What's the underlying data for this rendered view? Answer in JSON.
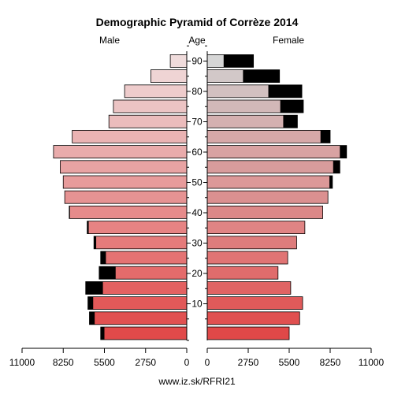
{
  "chart_data": {
    "type": "bar",
    "title": "Demographic Pyramid of Corrèze 2014",
    "left_label": "Male",
    "center_label": "Age",
    "right_label": "Female",
    "source": "www.iz.sk/RFRI21",
    "age_ticks": [
      10,
      20,
      30,
      40,
      50,
      60,
      70,
      80,
      90
    ],
    "x_ticks_left": [
      "11000",
      "8250",
      "5500",
      "2750",
      "0"
    ],
    "x_ticks_right": [
      "0",
      "2750",
      "5500",
      "8250",
      "11000"
    ],
    "xlim": [
      0,
      11000
    ],
    "groups": [
      "0-4",
      "5-9",
      "10-14",
      "15-19",
      "20-24",
      "25-29",
      "30-34",
      "35-39",
      "40-44",
      "45-49",
      "50-54",
      "55-59",
      "60-64",
      "65-69",
      "70-74",
      "75-79",
      "80-84",
      "85-89",
      "90+"
    ],
    "series": [
      {
        "name": "Male",
        "base": [
          5500,
          6150,
          6250,
          5600,
          4750,
          5400,
          6050,
          6550,
          7800,
          8150,
          8250,
          8450,
          8900,
          7650,
          5200,
          4900,
          4150,
          2400,
          1100
        ],
        "excess": [
          250,
          350,
          350,
          1150,
          1100,
          350,
          150,
          100,
          50,
          0,
          0,
          0,
          0,
          0,
          0,
          0,
          0,
          0,
          0
        ]
      },
      {
        "name": "Female",
        "base": [
          5500,
          6200,
          6400,
          5600,
          4750,
          5400,
          6000,
          6550,
          7750,
          8100,
          8200,
          8450,
          8900,
          7600,
          5100,
          4900,
          4100,
          2400,
          1100
        ],
        "excess": [
          0,
          0,
          0,
          0,
          0,
          0,
          0,
          0,
          0,
          0,
          200,
          450,
          450,
          650,
          950,
          1550,
          2250,
          2450,
          2000
        ]
      }
    ],
    "colors": {
      "excess": "#000000",
      "stroke": "#000000",
      "by_group": [
        "#e14a4a",
        "#e15151",
        "#e25959",
        "#e36161",
        "#e46b6b",
        "#e47373",
        "#e57b7b",
        "#e68383",
        "#e68b8b",
        "#e69393",
        "#e79b9b",
        "#e8a3a3",
        "#e9abab",
        "#eab3b3",
        "#ebbcbc",
        "#ecc4c4",
        "#eecccc",
        "#efd4d4",
        "#f0dcdc"
      ],
      "female_by_group": [
        "#e04848",
        "#e05050",
        "#e05a5a",
        "#e06464",
        "#e06c6c",
        "#e07474",
        "#de7c7c",
        "#e08484",
        "#dc8888",
        "#db9090",
        "#dc9898",
        "#d89c9c",
        "#d8a2a2",
        "#d6a8a8",
        "#d4b0b0",
        "#d2b8b8",
        "#d2c0c0",
        "#d2c8c8",
        "#d6d6d6"
      ]
    }
  }
}
